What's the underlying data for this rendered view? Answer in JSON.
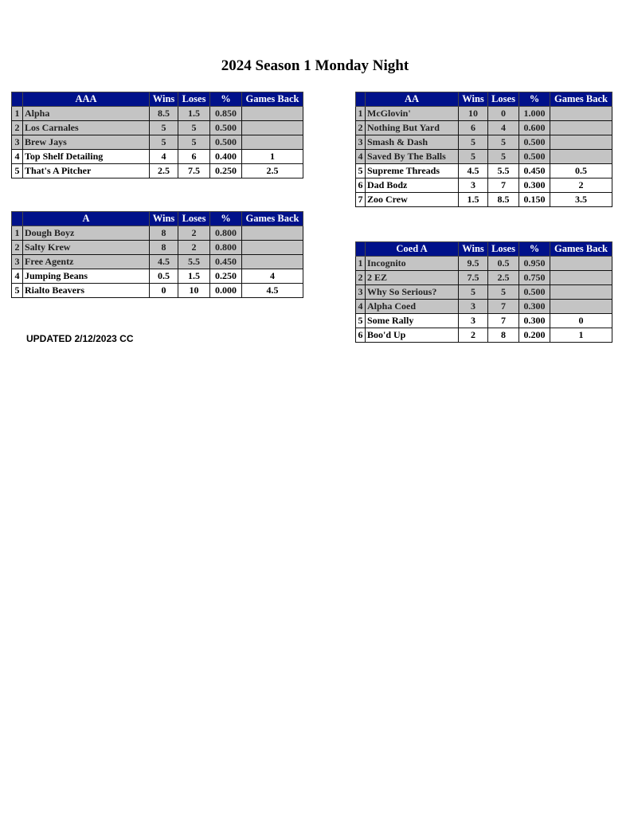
{
  "title": "2024 Season 1 Monday Night",
  "updated": "UPDATED 2/12/2023 CC",
  "columns": [
    "Wins",
    "Loses",
    "%",
    "Games Back"
  ],
  "colors": {
    "header": "#00118a",
    "gray_row": "#c4c4c4"
  },
  "tables": [
    {
      "division": "AAA",
      "rows": [
        {
          "rank": "1",
          "team": "Alpha",
          "wins": "8.5",
          "loses": "1.5",
          "pct": "0.850",
          "gb": "",
          "playoff": true
        },
        {
          "rank": "2",
          "team": "Los Carnales",
          "wins": "5",
          "loses": "5",
          "pct": "0.500",
          "gb": "",
          "playoff": true
        },
        {
          "rank": "3",
          "team": "Brew Jays",
          "wins": "5",
          "loses": "5",
          "pct": "0.500",
          "gb": "",
          "playoff": true
        },
        {
          "rank": "4",
          "team": "Top Shelf Detailing",
          "wins": "4",
          "loses": "6",
          "pct": "0.400",
          "gb": "1",
          "playoff": false
        },
        {
          "rank": "5",
          "team": "That's A Pitcher",
          "wins": "2.5",
          "loses": "7.5",
          "pct": "0.250",
          "gb": "2.5",
          "playoff": false
        }
      ]
    },
    {
      "division": "AA",
      "rows": [
        {
          "rank": "1",
          "team": "McGlovin'",
          "wins": "10",
          "loses": "0",
          "pct": "1.000",
          "gb": "",
          "playoff": true
        },
        {
          "rank": "2",
          "team": "Nothing But Yard",
          "wins": "6",
          "loses": "4",
          "pct": "0.600",
          "gb": "",
          "playoff": true
        },
        {
          "rank": "3",
          "team": "Smash & Dash",
          "wins": "5",
          "loses": "5",
          "pct": "0.500",
          "gb": "",
          "playoff": true
        },
        {
          "rank": "4",
          "team": "Saved By The Balls",
          "wins": "5",
          "loses": "5",
          "pct": "0.500",
          "gb": "",
          "playoff": true
        },
        {
          "rank": "5",
          "team": "Supreme Threads",
          "wins": "4.5",
          "loses": "5.5",
          "pct": "0.450",
          "gb": "0.5",
          "playoff": false
        },
        {
          "rank": "6",
          "team": "Dad Bodz",
          "wins": "3",
          "loses": "7",
          "pct": "0.300",
          "gb": "2",
          "playoff": false
        },
        {
          "rank": "7",
          "team": "Zoo Crew",
          "wins": "1.5",
          "loses": "8.5",
          "pct": "0.150",
          "gb": "3.5",
          "playoff": false
        }
      ]
    },
    {
      "division": "A",
      "rows": [
        {
          "rank": "1",
          "team": "Dough Boyz",
          "wins": "8",
          "loses": "2",
          "pct": "0.800",
          "gb": "",
          "playoff": true
        },
        {
          "rank": "2",
          "team": "Salty Krew",
          "wins": "8",
          "loses": "2",
          "pct": "0.800",
          "gb": "",
          "playoff": true
        },
        {
          "rank": "3",
          "team": "Free Agentz",
          "wins": "4.5",
          "loses": "5.5",
          "pct": "0.450",
          "gb": "",
          "playoff": true
        },
        {
          "rank": "4",
          "team": "Jumping Beans",
          "wins": "0.5",
          "loses": "1.5",
          "pct": "0.250",
          "gb": "4",
          "playoff": false
        },
        {
          "rank": "5",
          "team": "Rialto Beavers",
          "wins": "0",
          "loses": "10",
          "pct": "0.000",
          "gb": "4.5",
          "playoff": false
        }
      ]
    },
    {
      "division": "Coed A",
      "rows": [
        {
          "rank": "1",
          "team": "Incognito",
          "wins": "9.5",
          "loses": "0.5",
          "pct": "0.950",
          "gb": "",
          "playoff": true
        },
        {
          "rank": "2",
          "team": "2 EZ",
          "wins": "7.5",
          "loses": "2.5",
          "pct": "0.750",
          "gb": "",
          "playoff": true
        },
        {
          "rank": "3",
          "team": "Why So Serious?",
          "wins": "5",
          "loses": "5",
          "pct": "0.500",
          "gb": "",
          "playoff": true
        },
        {
          "rank": "4",
          "team": "Alpha Coed",
          "wins": "3",
          "loses": "7",
          "pct": "0.300",
          "gb": "",
          "playoff": true
        },
        {
          "rank": "5",
          "team": "Some Rally",
          "wins": "3",
          "loses": "7",
          "pct": "0.300",
          "gb": "0",
          "playoff": false
        },
        {
          "rank": "6",
          "team": "Boo'd Up",
          "wins": "2",
          "loses": "8",
          "pct": "0.200",
          "gb": "1",
          "playoff": false
        }
      ]
    }
  ]
}
